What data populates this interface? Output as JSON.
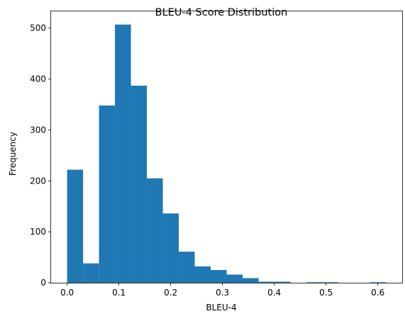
{
  "chart_data": {
    "type": "bar",
    "title": "BLEU-4 Score Distribution",
    "xlabel": "BLEU-4",
    "ylabel": "Frequency",
    "xlim": [
      -0.031,
      0.647
    ],
    "ylim": [
      0,
      533
    ],
    "x_ticks": [
      0.0,
      0.1,
      0.2,
      0.3,
      0.4,
      0.5,
      0.6
    ],
    "x_tick_labels": [
      "0.0",
      "0.1",
      "0.2",
      "0.3",
      "0.4",
      "0.5",
      "0.6"
    ],
    "y_ticks": [
      0,
      100,
      200,
      300,
      400,
      500
    ],
    "y_tick_labels": [
      "0",
      "100",
      "200",
      "300",
      "400",
      "500"
    ],
    "bin_edges": [
      0.0,
      0.0308,
      0.0616,
      0.0924,
      0.1232,
      0.154,
      0.1848,
      0.2156,
      0.2464,
      0.2772,
      0.308,
      0.3388,
      0.3696,
      0.4004,
      0.4312,
      0.462,
      0.4928,
      0.5236,
      0.5544,
      0.5852,
      0.616
    ],
    "values": [
      222,
      38,
      348,
      507,
      387,
      205,
      136,
      61,
      32,
      25,
      16,
      9,
      2,
      2,
      0,
      1,
      1,
      0,
      0,
      1
    ],
    "bar_color": "#1f77b4",
    "grid": false,
    "legend": "none"
  }
}
